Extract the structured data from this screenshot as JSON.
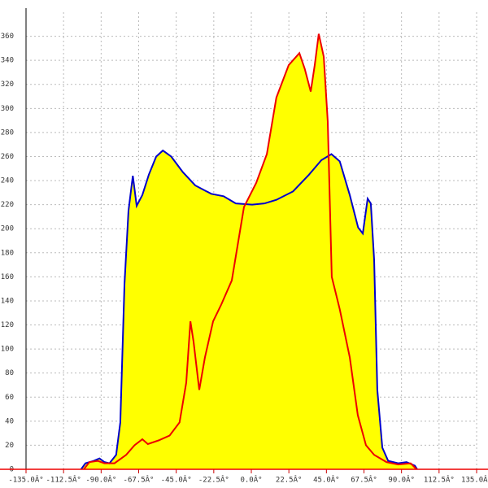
{
  "chart_data": {
    "type": "line",
    "fill_color": "#ffff00",
    "grid": true,
    "xlim": [
      -135,
      135
    ],
    "ylim": [
      0,
      380
    ],
    "xticks": [
      {
        "value": -135,
        "label": "-135.0Â°"
      },
      {
        "value": -112.5,
        "label": "-112.5Â°"
      },
      {
        "value": -90,
        "label": "-90.0Â°"
      },
      {
        "value": -67.5,
        "label": "-67.5Â°"
      },
      {
        "value": -45,
        "label": "-45.0Â°"
      },
      {
        "value": -22.5,
        "label": "-22.5Â°"
      },
      {
        "value": 0,
        "label": "0.0Â°"
      },
      {
        "value": 22.5,
        "label": "22.5Â°"
      },
      {
        "value": 45,
        "label": "45.0Â°"
      },
      {
        "value": 67.5,
        "label": "67.5Â°"
      },
      {
        "value": 90,
        "label": "90.0Â°"
      },
      {
        "value": 112.5,
        "label": "112.5Â°"
      },
      {
        "value": 135,
        "label": "135.0Â°"
      }
    ],
    "yticks": [
      0,
      20,
      40,
      60,
      80,
      100,
      120,
      140,
      160,
      180,
      200,
      220,
      240,
      260,
      280,
      300,
      320,
      340,
      360
    ],
    "series": [
      {
        "color": "#0000cc",
        "x": [
          -102,
          -99.4,
          -94.5,
          -91,
          -88,
          -85,
          -81,
          -78.5,
          -76,
          -73.6,
          -71,
          -68.7,
          -65.3,
          -61.4,
          -57,
          -53,
          -48,
          -41,
          -33.6,
          -24,
          -16.6,
          -9.3,
          0.5,
          7.8,
          15,
          25,
          34.6,
          42,
          48,
          53,
          59,
          64,
          66.8,
          69.7,
          71.6,
          73.6,
          75.5,
          78.5,
          82,
          88,
          93,
          98,
          99.4
        ],
        "values": [
          0,
          5,
          7,
          9,
          6,
          5,
          12,
          39,
          154,
          215,
          244,
          219,
          228,
          245,
          260,
          265,
          260,
          247,
          236,
          229,
          227,
          221,
          220,
          221,
          224,
          231,
          245,
          257,
          262,
          256,
          228,
          201,
          196,
          225,
          221,
          174,
          66,
          18,
          7,
          5,
          6,
          3,
          0
        ]
      },
      {
        "color": "#ee0000",
        "x": [
          -100.4,
          -97,
          -92,
          -88,
          -82,
          -75,
          -70,
          -65.3,
          -62,
          -55.6,
          -49,
          -43,
          -39,
          -36.5,
          -34.6,
          -31.2,
          -27.8,
          -22.9,
          -18,
          -11.7,
          -4.4,
          2.9,
          9.3,
          15,
          22.4,
          28.8,
          32,
          35.6,
          38,
          40.4,
          43.4,
          45.8,
          48.2,
          53,
          59,
          63.8,
          68.7,
          73.6,
          81,
          88,
          95.5,
          99
        ],
        "values": [
          0,
          6,
          7,
          5,
          5,
          12,
          20,
          25,
          21,
          24,
          28,
          39,
          72,
          123,
          106,
          66,
          93,
          123,
          137,
          157,
          218,
          238,
          262,
          309,
          336,
          346,
          333,
          314,
          336,
          362,
          343,
          289,
          160,
          133,
          93,
          45,
          20,
          12,
          6,
          4,
          5,
          0
        ]
      }
    ]
  }
}
